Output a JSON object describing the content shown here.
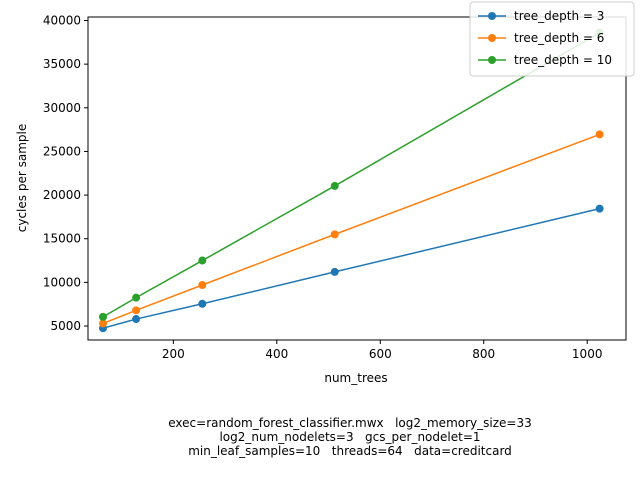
{
  "chart_data": {
    "type": "line",
    "xlabel": "num_trees",
    "ylabel": "cycles per sample",
    "xlim": [
      35,
      1075
    ],
    "ylim": [
      3400,
      40400
    ],
    "xticks": [
      200,
      400,
      600,
      800,
      1000
    ],
    "yticks": [
      5000,
      10000,
      15000,
      20000,
      25000,
      30000,
      35000,
      40000
    ],
    "grid": false,
    "legend_position": "top-right",
    "x": [
      64,
      128,
      256,
      512,
      1024
    ],
    "series": [
      {
        "name": "tree_depth = 3",
        "color": "#1f77b4",
        "values": [
          4750,
          5800,
          7550,
          11200,
          18450
        ]
      },
      {
        "name": "tree_depth = 6",
        "color": "#ff7f0e",
        "values": [
          5300,
          6800,
          9700,
          15500,
          26950
        ]
      },
      {
        "name": "tree_depth = 10",
        "color": "#2ca02c",
        "values": [
          6050,
          8250,
          12500,
          21050,
          38600
        ]
      }
    ]
  },
  "caption": {
    "line1": "exec=random_forest_classifier.mwx   log2_memory_size=33",
    "line2": "log2_num_nodelets=3   gcs_per_nodelet=1",
    "line3": "min_leaf_samples=10   threads=64   data=creditcard"
  }
}
